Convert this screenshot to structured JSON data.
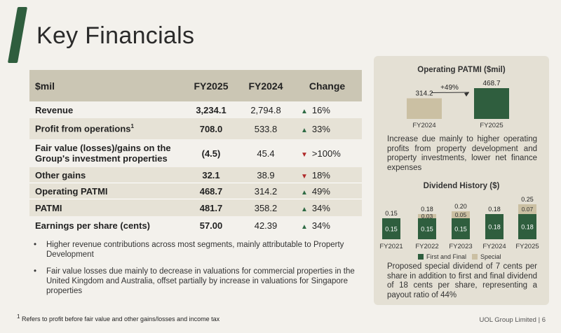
{
  "slide": {
    "title": "Key Financials",
    "footnote": "Refers to profit before fair value and other gains/losses and income tax",
    "footnote_mark": "1",
    "footer": "UOL Group Limited | 6"
  },
  "table": {
    "headers": [
      "$mil",
      "FY2025",
      "FY2024",
      "Change"
    ],
    "rows": [
      {
        "label": "Revenue",
        "fy2025": "3,234.1",
        "fy2024": "2,794.8",
        "dir": "up",
        "change": "16%"
      },
      {
        "label": "Profit from operations",
        "sup": "1",
        "fy2025": "708.0",
        "fy2024": "533.8",
        "dir": "up",
        "change": "33%"
      },
      {
        "label_line1": "Fair value (losses)/gains on the",
        "label_line2": "Group's investment properties",
        "fy2025": "(4.5)",
        "fy2024": "45.4",
        "dir": "down",
        "change": ">100%"
      },
      {
        "label": "Other gains",
        "fy2025": "32.1",
        "fy2024": "38.9",
        "dir": "down",
        "change": "18%"
      },
      {
        "label": "Operating PATMI",
        "fy2025": "468.7",
        "fy2024": "314.2",
        "dir": "up",
        "change": "49%"
      },
      {
        "label": "PATMI",
        "fy2025": "481.7",
        "fy2024": "358.2",
        "dir": "up",
        "change": "34%"
      },
      {
        "label": "Earnings per share (cents)",
        "fy2025": "57.00",
        "fy2024": "42.39",
        "dir": "up",
        "change": "34%"
      }
    ]
  },
  "bullets": [
    "Higher revenue contributions across most segments, mainly attributable to Property Development",
    "Fair value losses due mainly to decrease in valuations for commercial properties in the United Kingdom and Australia, offset partially by increase in valuations for Singapore properties"
  ],
  "colors": {
    "green": "#2f5e3e",
    "tan": "#cbc0a3",
    "up_arrow": "#2f6b45",
    "down_arrow": "#b02a2a"
  },
  "patmi_panel": {
    "title": "Operating PATMI ($mil)",
    "growth_label": "+49%",
    "text": "Increase due mainly to higher operating profits from property development and property investments, lower net finance expenses"
  },
  "dividend_panel": {
    "title": "Dividend History ($)",
    "legend_first": "First and Final",
    "legend_special": "Special",
    "text": "Proposed special dividend of 7 cents per share in addition to first and final dividend of 18 cents per share, representing a payout ratio of 44%"
  },
  "chart_data": [
    {
      "type": "bar",
      "title": "Operating PATMI ($mil)",
      "categories": [
        "FY2024",
        "FY2025"
      ],
      "values": [
        314.2,
        468.7
      ],
      "annotation": "+49%"
    },
    {
      "type": "bar",
      "stacked": true,
      "title": "Dividend History ($)",
      "categories": [
        "FY2021",
        "FY2022",
        "FY2023",
        "FY2024",
        "FY2025"
      ],
      "series": [
        {
          "name": "First and Final",
          "values": [
            0.15,
            0.15,
            0.15,
            0.18,
            0.18
          ]
        },
        {
          "name": "Special",
          "values": [
            0,
            0.03,
            0.05,
            0,
            0.07
          ]
        }
      ],
      "totals": [
        0.15,
        0.18,
        0.2,
        0.18,
        0.25
      ],
      "first_labels": [
        "0.15",
        "0.15",
        "0.15",
        "0.18",
        "0.18"
      ],
      "special_labels": [
        "",
        "0.03",
        "0.05",
        "",
        "0.07"
      ],
      "total_labels": [
        "0.15",
        "0.18",
        "0.20",
        "0.18",
        "0.25"
      ]
    }
  ]
}
